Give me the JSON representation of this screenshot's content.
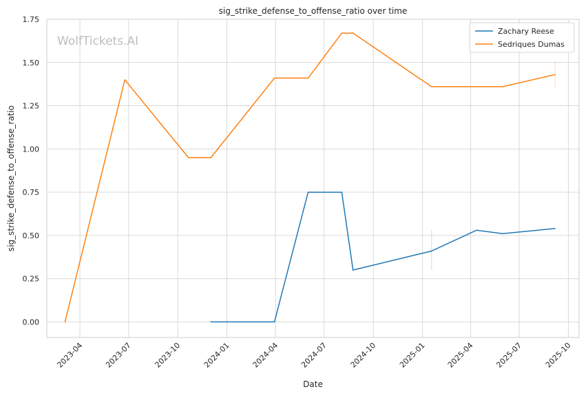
{
  "chart_data": {
    "type": "line",
    "title": "sig_strike_defense_to_offense_ratio over time",
    "xlabel": "Date",
    "ylabel": "sig_strike_defense_to_offense_ratio",
    "watermark": "WolfTickets.AI",
    "ylim": [
      -0.09,
      1.75
    ],
    "xlim": [
      "2023-01-29",
      "2025-10-21"
    ],
    "yticks": [
      0.0,
      0.25,
      0.5,
      0.75,
      1.0,
      1.25,
      1.5,
      1.75
    ],
    "ytick_labels": [
      "0.00",
      "0.25",
      "0.50",
      "0.75",
      "1.00",
      "1.25",
      "1.50",
      "1.75"
    ],
    "xticks": [
      "2023-04-01",
      "2023-07-01",
      "2023-10-01",
      "2024-01-01",
      "2024-04-01",
      "2024-07-01",
      "2024-10-01",
      "2025-01-01",
      "2025-04-01",
      "2025-07-01",
      "2025-10-01"
    ],
    "xtick_labels": [
      "2023-04",
      "2023-07",
      "2023-10",
      "2024-01",
      "2024-04",
      "2024-07",
      "2024-10",
      "2025-01",
      "2025-04",
      "2025-07",
      "2025-10"
    ],
    "grid": true,
    "legend_position": "top-right",
    "series": [
      {
        "name": "Zachary Reese",
        "color": "#1f77b4",
        "points": [
          {
            "x": "2023-12-02",
            "y": 0.0
          },
          {
            "x": "2024-03-30",
            "y": 0.0
          },
          {
            "x": "2024-06-01",
            "y": 0.75
          },
          {
            "x": "2024-08-03",
            "y": 0.75
          },
          {
            "x": "2024-08-24",
            "y": 0.3
          },
          {
            "x": "2025-01-18",
            "y": 0.41
          },
          {
            "x": "2025-04-12",
            "y": 0.53
          },
          {
            "x": "2025-05-31",
            "y": 0.51
          },
          {
            "x": "2025-09-06",
            "y": 0.54
          }
        ],
        "error_bar": {
          "x": "2025-01-18",
          "low": 0.3,
          "high": 0.53
        }
      },
      {
        "name": "Sedriques Dumas",
        "color": "#ff7f0e",
        "points": [
          {
            "x": "2023-03-04",
            "y": 0.0
          },
          {
            "x": "2023-06-24",
            "y": 1.4
          },
          {
            "x": "2023-10-21",
            "y": 0.95
          },
          {
            "x": "2023-12-02",
            "y": 0.95
          },
          {
            "x": "2024-03-30",
            "y": 1.41
          },
          {
            "x": "2024-06-01",
            "y": 1.41
          },
          {
            "x": "2024-08-03",
            "y": 1.67
          },
          {
            "x": "2024-08-24",
            "y": 1.67
          },
          {
            "x": "2025-01-18",
            "y": 1.36
          },
          {
            "x": "2025-05-31",
            "y": 1.36
          },
          {
            "x": "2025-09-06",
            "y": 1.43
          }
        ],
        "error_bar": {
          "x": "2025-09-06",
          "low": 1.35,
          "high": 1.51
        }
      }
    ]
  }
}
